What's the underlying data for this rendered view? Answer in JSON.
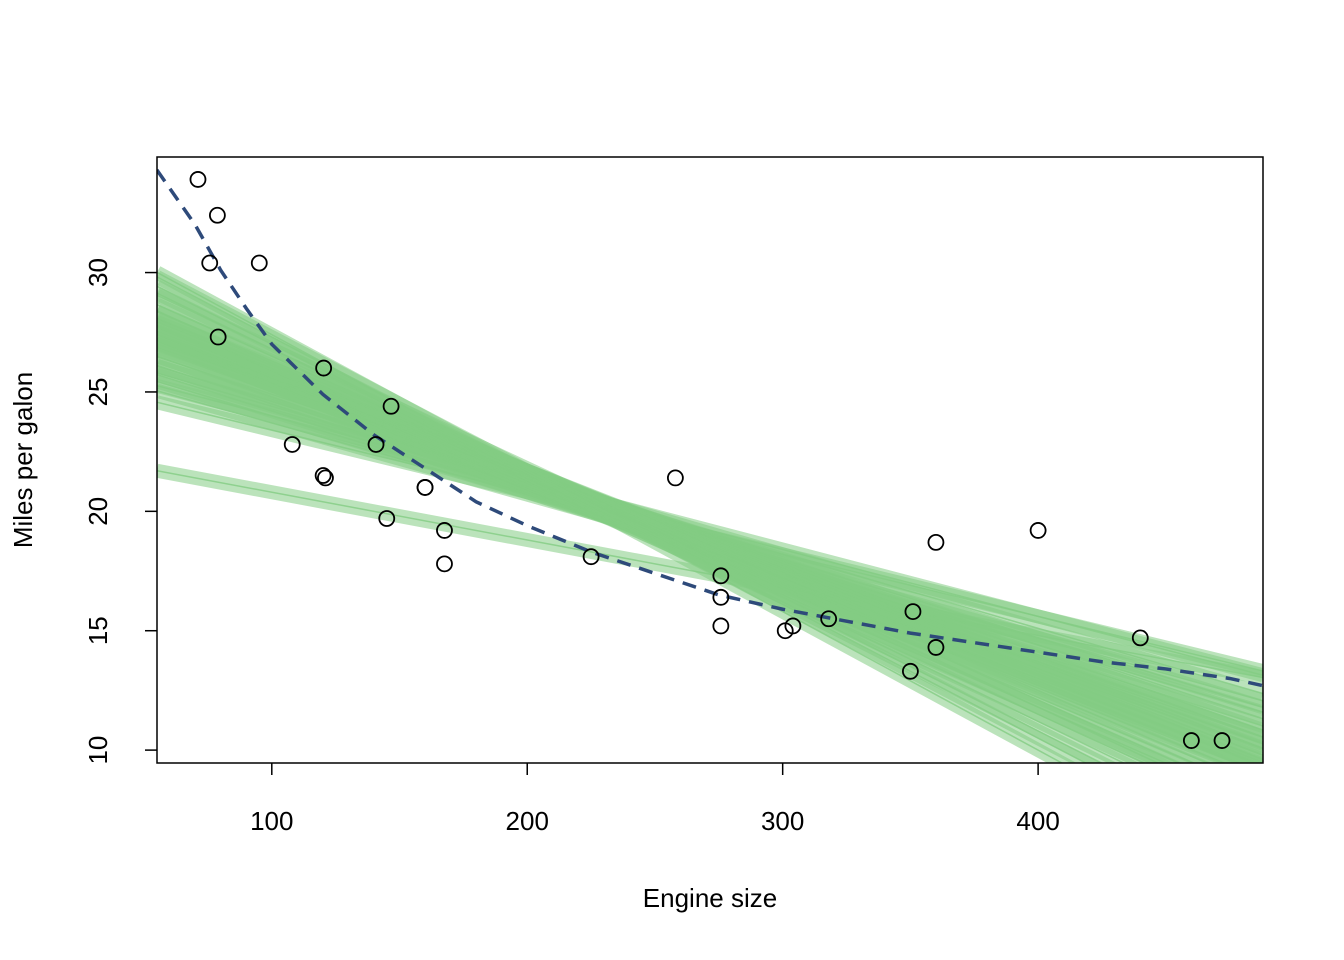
{
  "chart_data": {
    "type": "scatter",
    "xlabel": "Engine size",
    "ylabel": "Miles per galon",
    "xlim": [
      55.06,
      488.04
    ],
    "ylim": [
      9.46,
      34.84
    ],
    "xticks": [
      100,
      200,
      300,
      400
    ],
    "yticks": [
      10,
      15,
      20,
      25,
      30
    ],
    "point_color": "#000000",
    "x": [
      160,
      160,
      108,
      258,
      360,
      225,
      360,
      146.7,
      140.8,
      167.6,
      167.6,
      275.8,
      275.8,
      275.8,
      472,
      460,
      440,
      78.7,
      75.7,
      71.1,
      120.1,
      318,
      304,
      350,
      400,
      79,
      120.3,
      95.1,
      351,
      145,
      301,
      121
    ],
    "y": [
      21.0,
      21.0,
      22.8,
      21.4,
      18.7,
      18.1,
      14.3,
      24.4,
      22.8,
      19.2,
      17.8,
      16.4,
      17.3,
      15.2,
      10.4,
      10.4,
      14.7,
      32.4,
      30.4,
      33.9,
      21.5,
      15.5,
      15.2,
      13.3,
      19.2,
      27.3,
      26.0,
      30.4,
      15.8,
      19.7,
      15.0,
      21.4
    ],
    "fit_lines": {
      "color": "#83cc83",
      "intercepts": [
        22.8,
        26.0,
        26.8,
        26.7,
        27.5,
        27.2,
        27.9,
        27.6,
        28.4,
        28.1,
        28.9,
        28.6,
        29.1,
        29.3,
        29.0,
        29.6,
        29.4,
        29.8,
        29.5,
        30.1,
        29.8,
        30.3,
        30.5,
        30.2,
        30.9,
        30.6,
        31.3,
        31.1,
        31.8,
        32.0,
        32.4,
        32.9,
        33.2
      ],
      "slopes": [
        -0.02,
        -0.026,
        -0.028,
        -0.03,
        -0.031,
        -0.032,
        -0.033,
        -0.034,
        -0.035,
        -0.036,
        -0.037,
        -0.038,
        -0.038,
        -0.039,
        -0.04,
        -0.04,
        -0.041,
        -0.041,
        -0.042,
        -0.042,
        -0.043,
        -0.043,
        -0.044,
        -0.045,
        -0.046,
        -0.047,
        -0.048,
        -0.049,
        -0.05,
        -0.052,
        -0.054,
        -0.056,
        -0.058
      ]
    },
    "curve": {
      "color": "#2e4a7a",
      "x": [
        55,
        70,
        80,
        90,
        100,
        120,
        140,
        160,
        180,
        200,
        225,
        250,
        275,
        300,
        325,
        350,
        375,
        400,
        425,
        450,
        475,
        488
      ],
      "y": [
        34.3,
        32.0,
        30.1,
        28.5,
        27.0,
        24.9,
        23.2,
        21.8,
        20.4,
        19.4,
        18.3,
        17.4,
        16.5,
        15.9,
        15.4,
        14.9,
        14.5,
        14.1,
        13.7,
        13.4,
        13.0,
        12.7
      ]
    }
  }
}
